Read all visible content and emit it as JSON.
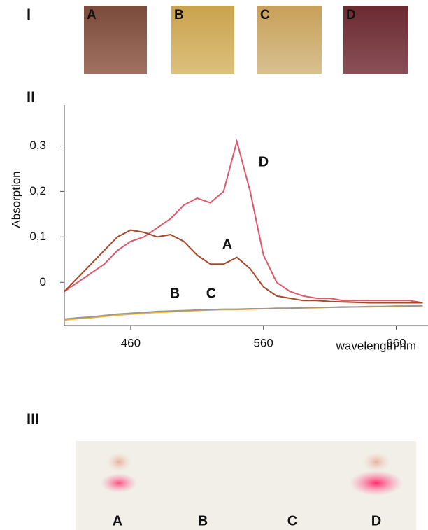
{
  "panel_I": {
    "label": "I",
    "samples": [
      "A",
      "B",
      "C",
      "D"
    ]
  },
  "chart_data": {
    "type": "line",
    "label": "II",
    "x_label": "wavelength nm",
    "y_label": "Absorption",
    "x": [
      410,
      420,
      430,
      440,
      450,
      460,
      470,
      480,
      490,
      500,
      510,
      520,
      530,
      540,
      550,
      560,
      570,
      580,
      590,
      600,
      610,
      620,
      630,
      640,
      650,
      660,
      670,
      680
    ],
    "series": [
      {
        "name": "D",
        "color": "#e0566a",
        "values": [
          -0.02,
          0.0,
          0.02,
          0.04,
          0.07,
          0.09,
          0.1,
          0.12,
          0.14,
          0.17,
          0.185,
          0.175,
          0.2,
          0.31,
          0.2,
          0.06,
          0.0,
          -0.02,
          -0.03,
          -0.035,
          -0.035,
          -0.04,
          -0.04,
          -0.04,
          -0.04,
          -0.04,
          -0.04,
          -0.045
        ]
      },
      {
        "name": "A",
        "color": "#a8482a",
        "values": [
          -0.02,
          0.01,
          0.04,
          0.07,
          0.1,
          0.115,
          0.11,
          0.1,
          0.105,
          0.09,
          0.06,
          0.04,
          0.04,
          0.055,
          0.03,
          -0.01,
          -0.03,
          -0.035,
          -0.04,
          -0.04,
          -0.042,
          -0.043,
          -0.044,
          -0.045,
          -0.045,
          -0.045,
          -0.045,
          -0.045
        ]
      },
      {
        "name": "B",
        "color": "#f0b830",
        "values": [
          -0.083,
          -0.08,
          -0.078,
          -0.075,
          -0.072,
          -0.07,
          -0.068,
          -0.066,
          -0.065,
          -0.063,
          -0.062,
          -0.061,
          -0.06,
          -0.06,
          -0.059,
          -0.058,
          -0.058,
          -0.057,
          -0.056,
          -0.056,
          -0.055,
          -0.055,
          -0.054,
          -0.054,
          -0.053,
          -0.053,
          -0.052,
          -0.052
        ]
      },
      {
        "name": "C",
        "color": "#a09890",
        "values": [
          -0.081,
          -0.078,
          -0.076,
          -0.073,
          -0.07,
          -0.068,
          -0.066,
          -0.064,
          -0.063,
          -0.062,
          -0.061,
          -0.06,
          -0.059,
          -0.059,
          -0.058,
          -0.058,
          -0.057,
          -0.057,
          -0.056,
          -0.055,
          -0.055,
          -0.054,
          -0.054,
          -0.053,
          -0.053,
          -0.052,
          -0.052,
          -0.051
        ]
      }
    ],
    "xlim": [
      410,
      684
    ],
    "ylim": [
      -0.095,
      0.39
    ],
    "xticks": [
      460,
      560,
      660
    ],
    "yticks": [
      {
        "value": 0,
        "label": "0"
      },
      {
        "value": 0.1,
        "label": "0,1"
      },
      {
        "value": 0.2,
        "label": "0,2"
      },
      {
        "value": 0.3,
        "label": "0,3"
      }
    ]
  },
  "panel_III": {
    "label": "III",
    "lanes": [
      "A",
      "B",
      "C",
      "D"
    ]
  }
}
